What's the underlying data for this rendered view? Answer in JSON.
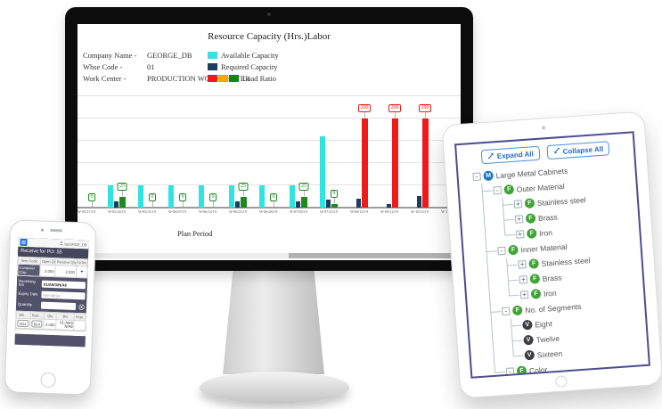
{
  "chart_data": {
    "type": "bar",
    "title": "Resource Capacity (Hrs.)Labor",
    "xlabel": "Plan Period",
    "ylabel": "",
    "ylim": [
      0,
      250
    ],
    "grid": true,
    "legend_position": "top-left",
    "categories": [
      "W-05/17/19",
      "W-05/24/19",
      "W-05/31/19",
      "W-06/07/19",
      "W-06/14/19",
      "W-06/21/19",
      "W-06/28/19",
      "W-07/05/19",
      "W-07/12/19",
      "W-08/12/19",
      "W-09/12/19",
      "W-10/12/19",
      "W-11/12/19"
    ],
    "series": [
      {
        "name": "Available Capacity",
        "color": "#2FE3E3",
        "values": [
          0,
          50,
          50,
          50,
          50,
          50,
          50,
          50,
          160,
          0,
          0,
          0,
          0
        ]
      },
      {
        "name": "Required Capacity",
        "color": "#1A3F5E",
        "values": [
          0,
          15,
          0,
          0,
          0,
          15,
          0,
          15,
          18,
          20,
          8,
          26,
          0
        ]
      },
      {
        "name": "Load Ratio",
        "color_low": "#1E8A1E",
        "color_high": "#EE1B1B",
        "threshold": 100,
        "values": [
          0,
          25,
          0,
          0,
          0,
          25,
          0,
          25,
          9,
          200,
          200,
          200,
          null
        ],
        "labels": [
          "0",
          "25",
          "0",
          "0",
          "0",
          "25",
          "0",
          "25",
          "9",
          "200",
          "200",
          "200",
          ""
        ]
      }
    ]
  },
  "monitor": {
    "info": [
      {
        "label": "Company Name -",
        "value": "GEORGE_DB"
      },
      {
        "label": "Whse Code -",
        "value": "01"
      },
      {
        "label": "Work Center -",
        "value": "PRODUCTION WORKCENTER"
      }
    ],
    "legend": [
      {
        "label": "Available Capacity",
        "swatches": [
          "#2FE3E3"
        ]
      },
      {
        "label": "Required Capacity",
        "swatches": [
          "#1A3F5E"
        ]
      },
      {
        "label": "Load Ratio",
        "swatches": [
          "#EE1B1B",
          "#F5A800",
          "#128712"
        ]
      }
    ]
  },
  "phone": {
    "navbar": {
      "menu_icon": "hamburger-icon",
      "user_icon": "person-icon",
      "user": "GEORGE_DB"
    },
    "title": "Receive for PO: 55",
    "item_table": {
      "headers": [
        "Item Code",
        "Open Qty",
        "Receive Qty",
        "UOM"
      ],
      "rows": [
        {
          "item": "Computer Chip",
          "open_qty": "2.000",
          "receive_qty": "2.000",
          "uom_icon": "chevron-down-icon"
        }
      ]
    },
    "fields": [
      {
        "label": "Receiving Bin",
        "value": "01/A9/3/N/A6",
        "placeholder": "",
        "icon": "pencil-icon"
      },
      {
        "label": "Expiry Date",
        "value": "",
        "placeholder": "mm-dd-yy",
        "icon": "calendar-icon"
      },
      {
        "label": "Quantity",
        "value": "",
        "placeholder": "",
        "icon": "scan-icon"
      }
    ],
    "detail_table": {
      "headers": [
        "Wh...",
        "Batc...",
        "Qty",
        "Bin",
        "Expi..."
      ],
      "rows": [
        {
          "wh": "B14",
          "batch": "B14",
          "qty": "2.000",
          "bin": "01-A9/3N/A6",
          "expiry": ""
        }
      ]
    }
  },
  "tablet": {
    "toolbar": [
      {
        "label": "Expand All",
        "icon": "expand-arrow-icon"
      },
      {
        "label": "Collapse All",
        "icon": "collapse-arrow-icon"
      }
    ],
    "icon_colors": {
      "M": "#1D76C8",
      "F": "#3FA435",
      "V": "#3F3F46"
    },
    "tree": {
      "label": "Large Metal Cabinets",
      "icon": "M",
      "expander": "minus",
      "children": [
        {
          "label": "Outer Material",
          "icon": "F",
          "expander": "minus",
          "children": [
            {
              "label": "Stainless steel",
              "icon": "F",
              "expander": "plus",
              "children": []
            },
            {
              "label": "Brass",
              "icon": "F",
              "expander": "plus",
              "children": []
            },
            {
              "label": "Iron",
              "icon": "F",
              "expander": "plus",
              "children": []
            }
          ]
        },
        {
          "label": "Inner Material",
          "icon": "F",
          "expander": "minus",
          "children": [
            {
              "label": "Stainless steel",
              "icon": "F",
              "expander": "plus",
              "children": []
            },
            {
              "label": "Brass",
              "icon": "F",
              "expander": "plus",
              "children": []
            },
            {
              "label": "Iron",
              "icon": "F",
              "expander": "plus",
              "children": []
            }
          ]
        },
        {
          "label": "No. of Segments",
          "icon": "F",
          "expander": "minus",
          "children": [
            {
              "label": "Eight",
              "icon": "V",
              "expander": null,
              "children": []
            },
            {
              "label": "Twelve",
              "icon": "V",
              "expander": null,
              "children": []
            },
            {
              "label": "Sixteen",
              "icon": "V",
              "expander": null,
              "children": []
            }
          ]
        },
        {
          "label": "Color",
          "icon": "F",
          "expander": "minus",
          "children": []
        }
      ]
    }
  }
}
